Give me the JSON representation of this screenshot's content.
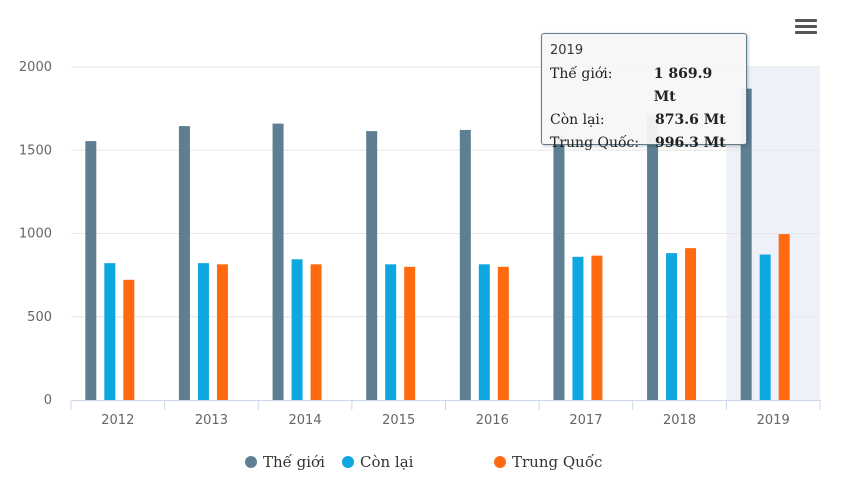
{
  "chart_data": {
    "type": "bar",
    "categories": [
      "2012",
      "2013",
      "2014",
      "2015",
      "2016",
      "2017",
      "2018",
      "2019"
    ],
    "series": [
      {
        "name": "Thế giới",
        "color": "#5d7f91",
        "values": [
          1555,
          1645,
          1660,
          1615,
          1622,
          1588,
          1710,
          1869.9
        ]
      },
      {
        "name": "Còn lại",
        "color": "#0ea7e0",
        "values": [
          822,
          822,
          845,
          815,
          815,
          860,
          882,
          873.6
        ]
      },
      {
        "name": "Trung Quốc",
        "color": "#ff6a10",
        "values": [
          722,
          815,
          815,
          800,
          800,
          867,
          912,
          996.3
        ]
      }
    ],
    "yticks": [
      0,
      500,
      1000,
      1500,
      2000
    ],
    "ylim": [
      0,
      2000
    ],
    "grid": true,
    "legend": "bottom-center",
    "highlight_category": "2019"
  },
  "tooltip": {
    "title": "2019",
    "rows": [
      {
        "name": "Thế giới:",
        "value": "1 869.9 Mt"
      },
      {
        "name": "Còn lại:",
        "value": "873.6 Mt"
      },
      {
        "name": "Trung Quốc:",
        "value": "996.3 Mt"
      }
    ]
  },
  "menu": {
    "icon": "hamburger-menu-icon"
  }
}
